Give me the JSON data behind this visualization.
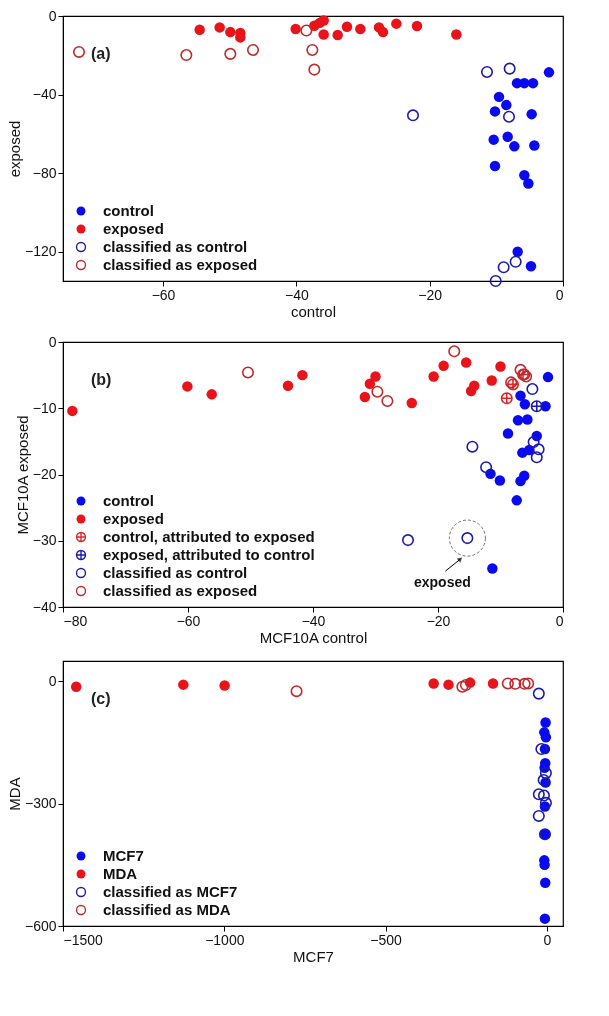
{
  "chart_data": [
    {
      "type": "scatter",
      "xlabel": "control",
      "ylabel": "exposed",
      "xlim": [
        -75,
        0
      ],
      "xticks": [
        -60,
        -40,
        -20,
        0
      ],
      "ylim": [
        -135,
        0
      ],
      "yticks": [
        -120,
        -80,
        -40,
        0
      ],
      "grid": false,
      "legend": "bottom left",
      "annotations": [
        "(a)"
      ],
      "series": [
        {
          "name": "control",
          "color": "#0a0af0",
          "marker": "circle",
          "x": [
            -2.1,
            -6.9,
            -5.8,
            -4.5,
            -9.6,
            -8.5,
            -10.2,
            -4.7,
            -10.4,
            -8.3,
            -7.3,
            -4.3,
            -10.2,
            -5.8,
            -5.2,
            -6.8,
            -4.8
          ],
          "values": [
            -28.7,
            -34.2,
            -34.2,
            -34.2,
            -41.2,
            -45.4,
            -48.6,
            -50,
            -63,
            -61.5,
            -66.4,
            -66,
            -76.4,
            -81.1,
            -85.3,
            -120.1,
            -127.5
          ]
        },
        {
          "name": "exposed",
          "color": "#e8141a",
          "marker": "circle",
          "x": [
            -54.5,
            -51.5,
            -49.9,
            -48.4,
            -48.4,
            -40.1,
            -37.3,
            -36.5,
            -35.9,
            -35.9,
            -33.8,
            -32.4,
            -30.4,
            -27.6,
            -27,
            -25,
            -21.9,
            -16
          ],
          "values": [
            -7,
            -5.8,
            -8.2,
            -8.6,
            -10.9,
            -6.6,
            -5,
            -3.5,
            -2.3,
            -9.4,
            -9.7,
            -5.5,
            -6.6,
            -5.8,
            -8.2,
            -3.9,
            -5.1,
            -9.4
          ]
        },
        {
          "name": "classified as control",
          "color": "#1c1ca8",
          "marker": "circle-open",
          "x": [
            -11.4,
            -8,
            -22.5,
            -8.1,
            -8.9,
            -7.1,
            -10.1
          ],
          "values": [
            -28.5,
            -26.8,
            -50.6,
            -51.3,
            -128,
            -125.2,
            -135
          ]
        },
        {
          "name": "classified as exposed",
          "color": "#c0282c",
          "marker": "circle-open",
          "x": [
            -72.6,
            -56.5,
            -49.9,
            -46.5,
            -38.5,
            -37.6,
            -37.3
          ],
          "values": [
            -18.3,
            -19.9,
            -19.3,
            -17.3,
            -7.4,
            -17.3,
            -27.3
          ]
        }
      ]
    },
    {
      "type": "scatter",
      "xlabel": "MCF10A control",
      "ylabel": "MCF10A exposed",
      "xlim": [
        -80,
        0
      ],
      "xticks": [
        -80,
        -60,
        -40,
        -20,
        0
      ],
      "ylim": [
        -40,
        0
      ],
      "yticks": [
        -40,
        -30,
        -20,
        -10,
        0
      ],
      "grid": false,
      "legend": "bottom left",
      "annotations": [
        "(b)",
        {
          "text": "exposed",
          "x": -15.3,
          "y": -29.6
        }
      ],
      "series": [
        {
          "name": "control",
          "color": "#0a0af0",
          "marker": "circle",
          "x": [
            -2.4,
            -6.8,
            -6.1,
            -2.8,
            -7.2,
            -5.7,
            -8.8,
            -4.2,
            -6.5,
            -5.4,
            -11.6,
            -10.1,
            -6.2,
            -6.8,
            -7.4,
            -11.3
          ],
          "values": [
            -5.3,
            -8.1,
            -9.4,
            -9.7,
            -11.8,
            -11.7,
            -13.8,
            -14.2,
            -16.7,
            -16.3,
            -19.9,
            -20.9,
            -20.2,
            -21,
            -23.9,
            -34.2
          ]
        },
        {
          "name": "exposed",
          "color": "#e8141a",
          "marker": "circle",
          "x": [
            -78.5,
            -60.1,
            -56.2,
            -44,
            -41.7,
            -31.7,
            -30.9,
            -30,
            -24.2,
            -20.7,
            -19.1,
            -15.5,
            -14.2,
            -14.7,
            -11.4,
            -10
          ],
          "values": [
            -10.4,
            -6.7,
            -7.9,
            -6.6,
            -5,
            -8.3,
            -6.3,
            -5.2,
            -9.2,
            -5.2,
            -3.6,
            -3.1,
            -6.6,
            -7.4,
            -5.8,
            -3.7
          ]
        },
        {
          "name": "control, attributed to exposed",
          "color": "#d42a2a",
          "marker": "cross",
          "x": [
            -9,
            -8,
            -6.4
          ],
          "values": [
            -8.5,
            -6.4,
            -4.9
          ]
        },
        {
          "name": "exposed, attributed to control",
          "color": "#1c1ca8",
          "marker": "cross",
          "x": [
            -4.2
          ],
          "values": [
            -9.7
          ]
        },
        {
          "name": "classified as control",
          "color": "#1c1ca8",
          "marker": "circle-open",
          "x": [
            -4.9,
            -14.5,
            -12.3,
            -4.7,
            -3.9,
            -4.2,
            -24.8,
            -15.3
          ],
          "values": [
            -7.1,
            -15.8,
            -18.9,
            -15.1,
            -16.2,
            -17.4,
            -29.9,
            -29.6
          ]
        },
        {
          "name": "classified as exposed",
          "color": "#c0282c",
          "marker": "circle-open",
          "x": [
            -50.4,
            -29.7,
            -28.1,
            -17.4,
            -6.8,
            -6.2,
            -5.9,
            -8.3
          ],
          "values": [
            -4.6,
            -7.5,
            -8.9,
            -1.4,
            -4.2,
            -4.9,
            -5.2,
            -6.1
          ]
        }
      ]
    },
    {
      "type": "scatter",
      "xlabel": "MCF7",
      "ylabel": "MDA",
      "xlim": [
        -1500,
        50
      ],
      "xticks": [
        -1500,
        -1000,
        -500,
        0
      ],
      "ylim": [
        -600,
        50
      ],
      "yticks": [
        -600,
        -300,
        0
      ],
      "grid": false,
      "legend": "bottom left",
      "annotations": [
        "(c)"
      ],
      "series": [
        {
          "name": "MCF7",
          "color": "#0a0af0",
          "marker": "circle",
          "x": [
            -4,
            -8,
            -3,
            -6,
            -5,
            -7,
            -4,
            -6,
            -5,
            -8,
            -7,
            -5,
            -6
          ],
          "values": [
            -101,
            -125,
            -137,
            -166,
            -201,
            -212,
            -248,
            -307,
            -375,
            -439,
            -450,
            -494,
            -582
          ]
        },
        {
          "name": "MDA",
          "color": "#e8141a",
          "marker": "circle",
          "x": [
            -1459,
            -1127,
            -999,
            -351,
            -305,
            -238,
            -167
          ],
          "values": [
            -13,
            -8,
            -10,
            -5,
            -8,
            -3,
            -5
          ]
        },
        {
          "name": "classified as MCF7",
          "color": "#1c1ca8",
          "marker": "circle-open",
          "x": [
            -25,
            -17,
            -10,
            -25,
            -9,
            -3,
            -25,
            -6,
            -3
          ],
          "values": [
            -30,
            -166,
            -242,
            -277,
            -280,
            -298,
            -330,
            -375,
            -225
          ]
        },
        {
          "name": "classified as MDA",
          "color": "#c0282c",
          "marker": "circle-open",
          "x": [
            -776,
            -262,
            -251,
            -121,
            -69,
            -58,
            -98
          ],
          "values": [
            -24,
            -13,
            -9,
            -5,
            -6,
            -5,
            -6
          ]
        }
      ]
    }
  ]
}
